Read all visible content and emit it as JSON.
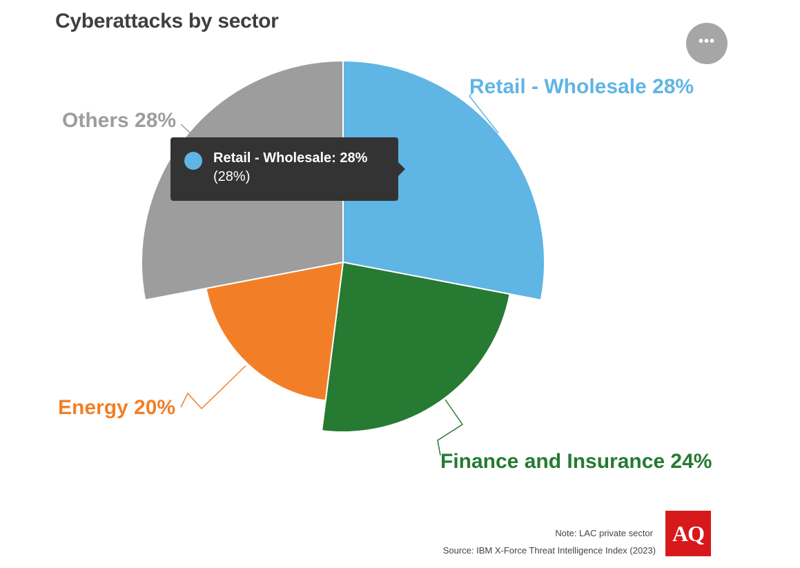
{
  "title": "Cyberattacks by sector",
  "menu_icon": "more-horizontal-icon",
  "chart_data": {
    "type": "pie",
    "variant": "variable-radius",
    "categories": [
      "Retail - Wholesale",
      "Finance and Insurance",
      "Energy",
      "Others"
    ],
    "values": [
      28,
      24,
      20,
      28
    ],
    "colors": [
      "#5fb5e4",
      "#267a32",
      "#f27f27",
      "#9d9d9d"
    ],
    "labels": [
      "Retail - Wholesale 28%",
      "Finance and Insurance 24%",
      "Energy 20%",
      "Others 28%"
    ]
  },
  "tooltip": {
    "main": "Retail - Wholesale: 28%",
    "sub": "(28%)",
    "color": "#5fb5e4"
  },
  "note": "Note: LAC private sector",
  "source": "Source: IBM X-Force Threat Intelligence Index (2023)",
  "logo_text": "AQ"
}
